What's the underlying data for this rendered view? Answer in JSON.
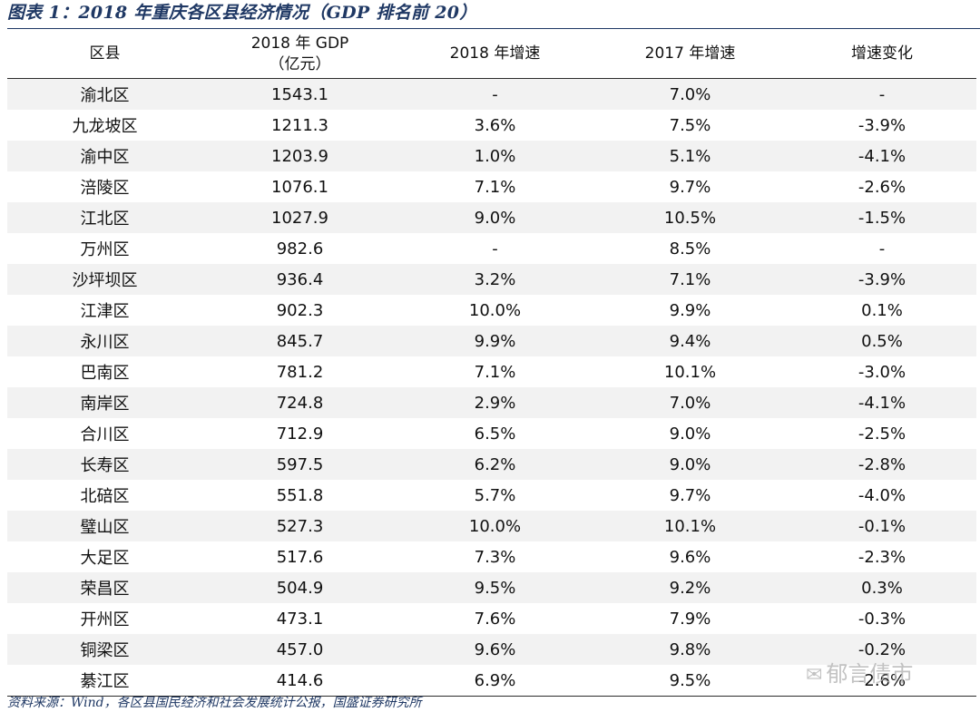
{
  "title": "图表 1：2018 年重庆各区县经济情况（GDP 排名前 20）",
  "header": {
    "district": "区县",
    "gdp_line1": "2018 年 GDP",
    "gdp_line2": "（亿元）",
    "growth_2018": "2018 年增速",
    "growth_2017": "2017 年增速",
    "change": "增速变化"
  },
  "rows": [
    [
      "渝北区",
      "1543.1",
      "-",
      "7.0%",
      "-"
    ],
    [
      "九龙坡区",
      "1211.3",
      "3.6%",
      "7.5%",
      "-3.9%"
    ],
    [
      "渝中区",
      "1203.9",
      "1.0%",
      "5.1%",
      "-4.1%"
    ],
    [
      "涪陵区",
      "1076.1",
      "7.1%",
      "9.7%",
      "-2.6%"
    ],
    [
      "江北区",
      "1027.9",
      "9.0%",
      "10.5%",
      "-1.5%"
    ],
    [
      "万州区",
      "982.6",
      "-",
      "8.5%",
      "-"
    ],
    [
      "沙坪坝区",
      "936.4",
      "3.2%",
      "7.1%",
      "-3.9%"
    ],
    [
      "江津区",
      "902.3",
      "10.0%",
      "9.9%",
      "0.1%"
    ],
    [
      "永川区",
      "845.7",
      "9.9%",
      "9.4%",
      "0.5%"
    ],
    [
      "巴南区",
      "781.2",
      "7.1%",
      "10.1%",
      "-3.0%"
    ],
    [
      "南岸区",
      "724.8",
      "2.9%",
      "7.0%",
      "-4.1%"
    ],
    [
      "合川区",
      "712.9",
      "6.5%",
      "9.0%",
      "-2.5%"
    ],
    [
      "长寿区",
      "597.5",
      "6.2%",
      "9.0%",
      "-2.8%"
    ],
    [
      "北碚区",
      "551.8",
      "5.7%",
      "9.7%",
      "-4.0%"
    ],
    [
      "璧山区",
      "527.3",
      "10.0%",
      "10.1%",
      "-0.1%"
    ],
    [
      "大足区",
      "517.6",
      "7.3%",
      "9.6%",
      "-2.3%"
    ],
    [
      "荣昌区",
      "504.9",
      "9.5%",
      "9.2%",
      "0.3%"
    ],
    [
      "开州区",
      "473.1",
      "7.6%",
      "7.9%",
      "-0.3%"
    ],
    [
      "铜梁区",
      "457.0",
      "9.6%",
      "9.8%",
      "-0.2%"
    ],
    [
      "綦江区",
      "414.6",
      "6.9%",
      "9.5%",
      "-2.6%"
    ]
  ],
  "source": "资料来源：Wind，各区县国民经济和社会发展统计公报，国盛证券研究所",
  "watermark": "郁言债市",
  "colors": {
    "title": "#1f3864",
    "stripe": "#f2f2f2",
    "watermark": "#b8b8b8"
  },
  "icons": {
    "watermark": "wechat-icon"
  }
}
